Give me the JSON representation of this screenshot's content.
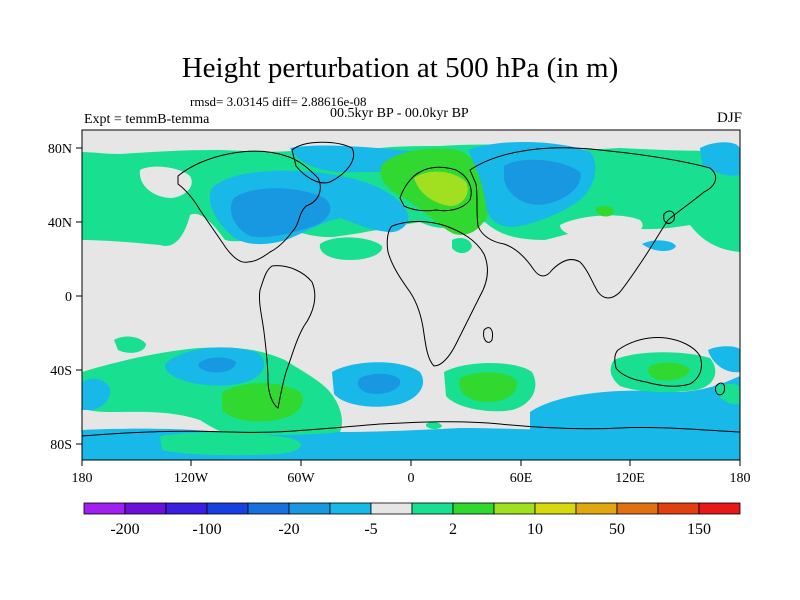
{
  "title": "Height perturbation at 500 hPa (in m)",
  "stats_line": "rmsd= 3.03145 diff= 2.88616e-08",
  "experiment_label": "Expt = temmB-temma",
  "period_label": "00.5kyr BP - 00.0kyr BP",
  "season_label": "DJF",
  "lat_ticks": [
    "80N",
    "40N",
    "0",
    "40S",
    "80S"
  ],
  "lon_ticks": [
    "180",
    "120W",
    "60W",
    "0",
    "60E",
    "120E",
    "180"
  ],
  "colorbar": {
    "colors": [
      "#a020f0",
      "#6a10d8",
      "#3a1fe0",
      "#1840e0",
      "#1870e0",
      "#1898e0",
      "#18b8e8",
      "#e6e6e6",
      "#18e090",
      "#30d830",
      "#a0e020",
      "#d8d810",
      "#e0a810",
      "#e07010",
      "#e04010",
      "#e81818"
    ],
    "labels": [
      "-200",
      "-100",
      "-20",
      "-5",
      "2",
      "10",
      "50",
      "150"
    ]
  },
  "map_colors": {
    "neutral": "#e6e6e6",
    "light_blue": "#18b8e8",
    "mid_blue": "#1898e0",
    "dark_blue": "#1870e0",
    "light_green": "#18e090",
    "green": "#30d830",
    "yellow_green": "#a0e020",
    "coastline": "#000000"
  }
}
